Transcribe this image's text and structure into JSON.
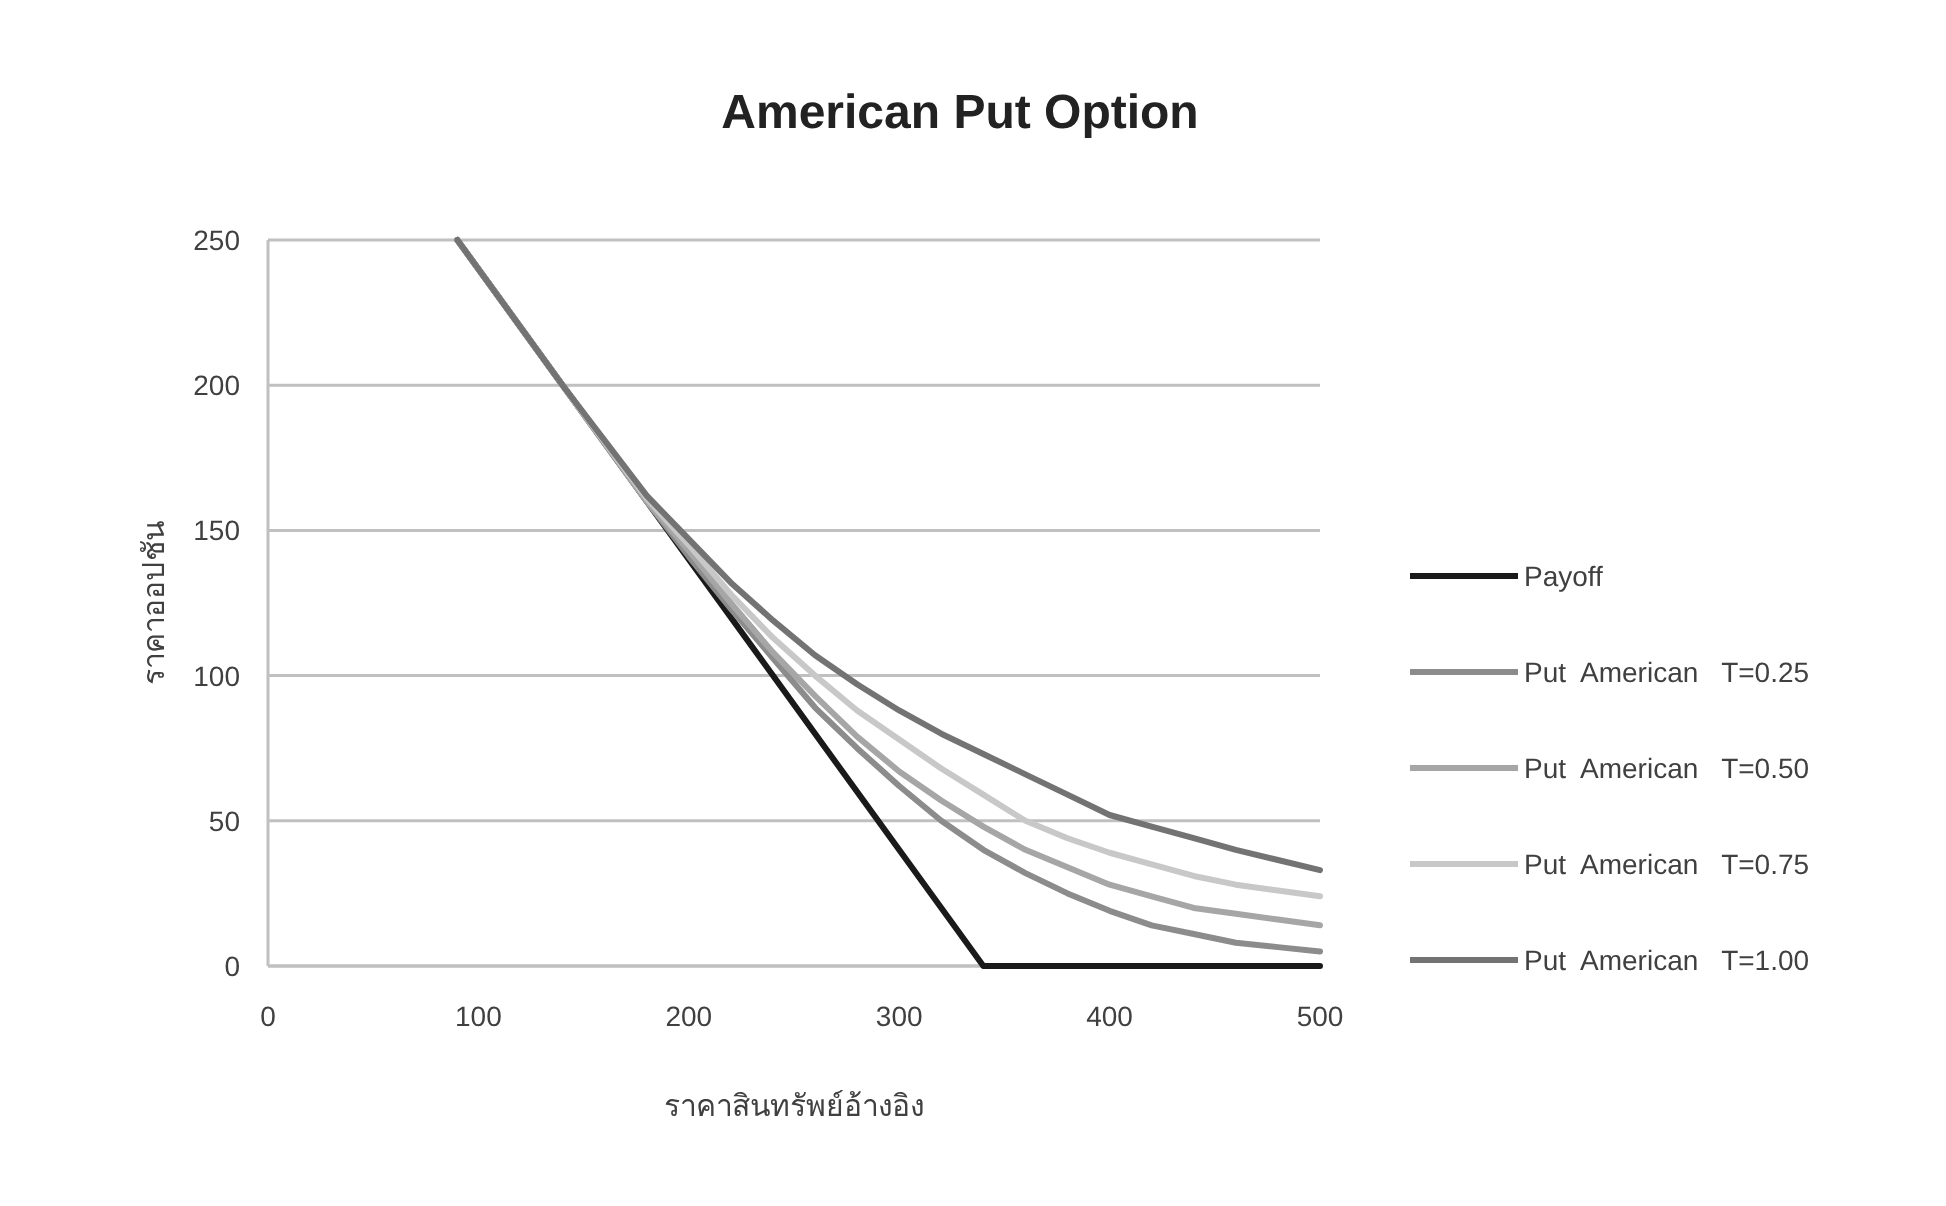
{
  "chart_data": {
    "type": "line",
    "title": "American Put Option",
    "xlabel": "ราคาสินทรัพย์อ้างอิง",
    "ylabel": "ราคาออปชัน",
    "xlim": [
      0,
      500
    ],
    "ylim": [
      0,
      250
    ],
    "xticks": [
      0,
      100,
      200,
      300,
      400,
      500
    ],
    "yticks": [
      0,
      50,
      100,
      150,
      200,
      250
    ],
    "grid": "y",
    "legend": "right",
    "line_style": "solid",
    "series": [
      {
        "name": "Payoff",
        "color": "#1a1a1a",
        "x": [
          90,
          340,
          500
        ],
        "values": [
          250,
          0,
          0
        ]
      },
      {
        "name": "Put  American   T=0.25",
        "color": "#8c8c8c",
        "x": [
          90,
          140,
          180,
          200,
          220,
          240,
          260,
          280,
          300,
          320,
          340,
          360,
          380,
          400,
          420,
          440,
          460,
          480,
          500
        ],
        "values": [
          250,
          200,
          160,
          141,
          123,
          106,
          89,
          75,
          62,
          50,
          40,
          32,
          25,
          19,
          14,
          11,
          8,
          6.5,
          5
        ]
      },
      {
        "name": "Put  American   T=0.50",
        "color": "#a6a6a6",
        "x": [
          90,
          140,
          180,
          200,
          220,
          240,
          260,
          280,
          300,
          320,
          340,
          360,
          380,
          400,
          420,
          440,
          460,
          480,
          500
        ],
        "values": [
          250,
          200,
          160,
          143,
          125,
          108,
          93,
          79,
          67,
          57,
          48,
          40,
          34,
          28,
          24,
          20,
          18,
          16,
          14
        ]
      },
      {
        "name": "Put  American   T=0.75",
        "color": "#c8c8c8",
        "x": [
          90,
          140,
          180,
          200,
          220,
          240,
          260,
          280,
          300,
          320,
          340,
          360,
          380,
          400,
          420,
          440,
          460,
          480,
          500
        ],
        "values": [
          250,
          200,
          161,
          145,
          128,
          113,
          100,
          88,
          78,
          68,
          59,
          50,
          44,
          39,
          35,
          31,
          28,
          26,
          24
        ]
      },
      {
        "name": "Put  American   T=1.00",
        "color": "#737373",
        "x": [
          90,
          140,
          180,
          200,
          220,
          240,
          260,
          280,
          300,
          320,
          340,
          360,
          380,
          400,
          420,
          440,
          460,
          480,
          500
        ],
        "values": [
          250,
          200,
          162,
          147,
          132,
          119,
          107,
          97,
          88,
          80,
          73,
          66,
          59,
          52,
          48,
          44,
          40,
          36.5,
          33
        ]
      }
    ]
  }
}
